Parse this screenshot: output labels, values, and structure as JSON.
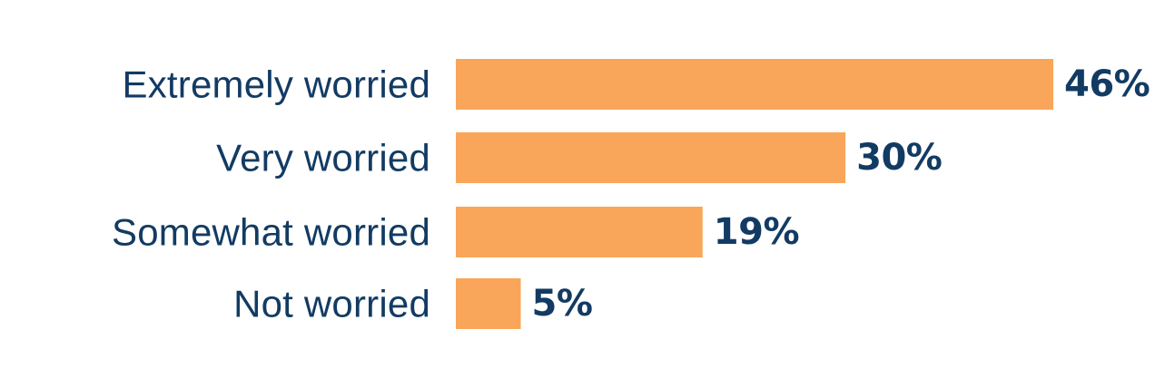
{
  "chart_data": {
    "type": "bar",
    "orientation": "horizontal",
    "categories": [
      "Extremely worried",
      "Very worried",
      "Somewhat worried",
      "Not worried"
    ],
    "values": [
      46,
      30,
      19,
      5
    ],
    "value_labels": [
      "46%",
      "30%",
      "19%",
      "5%"
    ],
    "unit": "%",
    "xlim": [
      0,
      46
    ],
    "grid": false,
    "legend": "none"
  },
  "colors": {
    "bar": "#F9A65A",
    "text": "#123B63",
    "background": "#FFFFFF"
  }
}
